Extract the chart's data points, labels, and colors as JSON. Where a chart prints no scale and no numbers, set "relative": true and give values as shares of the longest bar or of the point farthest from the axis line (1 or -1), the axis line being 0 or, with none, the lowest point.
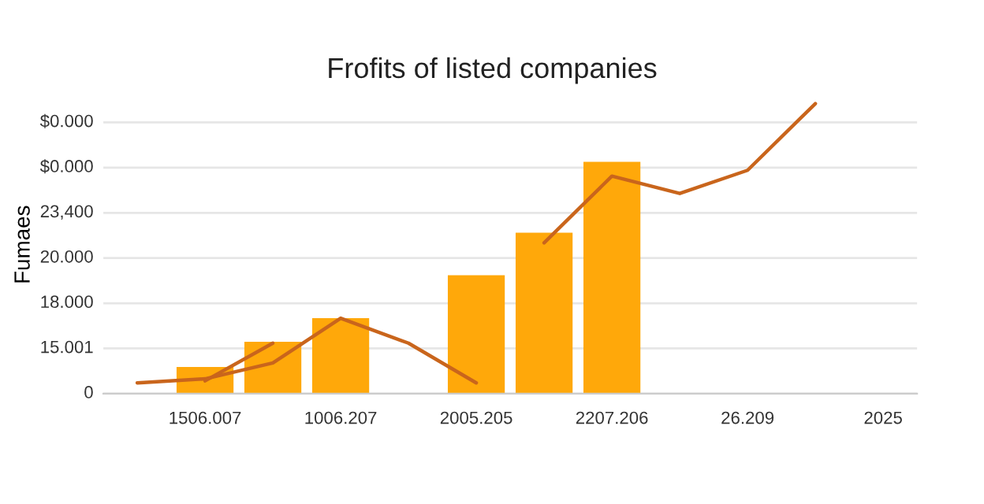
{
  "chart_data": {
    "type": "bar",
    "title": "Frofits of listed companies",
    "ylabel": "Fumaes",
    "relative": true,
    "categories": [
      null,
      "1506.007",
      null,
      "1006.207",
      null,
      "2005.205",
      null,
      "2207.206",
      null,
      "26.209",
      null,
      "2025"
    ],
    "annotations": [
      "$0.000",
      "$0.000",
      "23,400",
      "20.000",
      "18.000",
      "15.001",
      "0"
    ],
    "grid": "y",
    "series": [
      {
        "color": "#ffa80a",
        "values": [
          null,
          0.092,
          0.179,
          0.26,
          null,
          0.408,
          0.555,
          0.799,
          null,
          null,
          null,
          null
        ]
      },
      {
        "type": "line",
        "color": "#c9651c",
        "values": [
          0.037,
          0.051,
          0.106,
          0.26,
          0.174,
          0.037,
          null,
          null,
          null,
          null,
          null,
          null
        ]
      },
      {
        "type": "line",
        "color": "#c9651c",
        "values": [
          null,
          null,
          null,
          null,
          null,
          null,
          0.52,
          0.75,
          0.69,
          0.77,
          1,
          null
        ]
      },
      {
        "type": "line",
        "color": "#c9651c",
        "values": [
          null,
          0.044,
          0.174,
          null,
          null,
          null,
          null,
          null,
          null,
          null,
          null,
          null
        ]
      }
    ]
  }
}
